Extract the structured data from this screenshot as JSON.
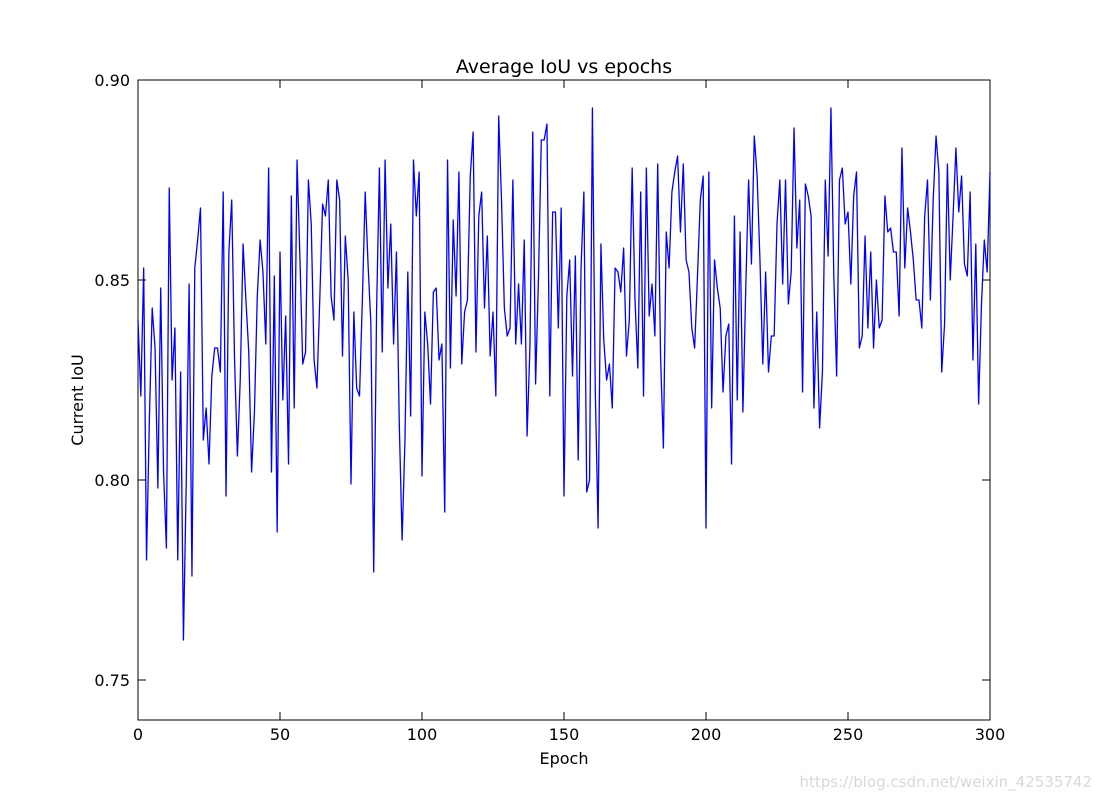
{
  "chart_data": {
    "type": "line",
    "title": "Average IoU vs epochs",
    "xlabel": "Epoch",
    "ylabel": "Current IoU",
    "xlim": [
      0,
      300
    ],
    "ylim": [
      0.74,
      0.9
    ],
    "xticks": [
      0,
      50,
      100,
      150,
      200,
      250,
      300
    ],
    "xtick_labels": [
      "0",
      "50",
      "100",
      "150",
      "200",
      "250",
      "300"
    ],
    "yticks": [
      0.75,
      0.8,
      0.85,
      0.9
    ],
    "ytick_labels": [
      "0.75",
      "0.80",
      "0.85",
      "0.90"
    ],
    "grid": false,
    "line_color": "#0000ff",
    "series": [
      {
        "values": [
          0.84,
          0.821,
          0.853,
          0.78,
          0.815,
          0.843,
          0.833,
          0.798,
          0.848,
          0.802,
          0.783,
          0.873,
          0.825,
          0.838,
          0.78,
          0.827,
          0.76,
          0.8,
          0.849,
          0.776,
          0.853,
          0.86,
          0.868,
          0.81,
          0.818,
          0.804,
          0.826,
          0.833,
          0.833,
          0.827,
          0.872,
          0.796,
          0.857,
          0.87,
          0.83,
          0.806,
          0.825,
          0.859,
          0.845,
          0.832,
          0.802,
          0.817,
          0.846,
          0.86,
          0.852,
          0.834,
          0.878,
          0.802,
          0.851,
          0.787,
          0.857,
          0.82,
          0.841,
          0.804,
          0.871,
          0.818,
          0.88,
          0.856,
          0.829,
          0.832,
          0.875,
          0.864,
          0.83,
          0.823,
          0.845,
          0.869,
          0.866,
          0.875,
          0.846,
          0.84,
          0.875,
          0.87,
          0.831,
          0.861,
          0.85,
          0.799,
          0.842,
          0.823,
          0.821,
          0.845,
          0.872,
          0.854,
          0.839,
          0.777,
          0.842,
          0.878,
          0.832,
          0.88,
          0.848,
          0.864,
          0.834,
          0.857,
          0.814,
          0.785,
          0.81,
          0.852,
          0.816,
          0.88,
          0.866,
          0.877,
          0.801,
          0.842,
          0.834,
          0.819,
          0.847,
          0.848,
          0.83,
          0.834,
          0.792,
          0.88,
          0.828,
          0.865,
          0.846,
          0.877,
          0.829,
          0.842,
          0.845,
          0.876,
          0.887,
          0.832,
          0.866,
          0.872,
          0.843,
          0.861,
          0.831,
          0.842,
          0.821,
          0.891,
          0.87,
          0.843,
          0.836,
          0.838,
          0.875,
          0.834,
          0.849,
          0.834,
          0.86,
          0.811,
          0.833,
          0.887,
          0.824,
          0.85,
          0.885,
          0.885,
          0.889,
          0.821,
          0.867,
          0.867,
          0.838,
          0.868,
          0.796,
          0.846,
          0.855,
          0.826,
          0.856,
          0.805,
          0.853,
          0.872,
          0.797,
          0.8,
          0.893,
          0.823,
          0.788,
          0.859,
          0.835,
          0.825,
          0.829,
          0.818,
          0.853,
          0.852,
          0.847,
          0.858,
          0.831,
          0.84,
          0.878,
          0.845,
          0.828,
          0.872,
          0.821,
          0.878,
          0.841,
          0.849,
          0.836,
          0.879,
          0.831,
          0.808,
          0.862,
          0.853,
          0.872,
          0.877,
          0.881,
          0.862,
          0.879,
          0.855,
          0.852,
          0.838,
          0.833,
          0.851,
          0.87,
          0.876,
          0.788,
          0.877,
          0.818,
          0.855,
          0.848,
          0.843,
          0.822,
          0.836,
          0.839,
          0.804,
          0.866,
          0.82,
          0.862,
          0.817,
          0.848,
          0.875,
          0.854,
          0.886,
          0.876,
          0.855,
          0.829,
          0.852,
          0.827,
          0.836,
          0.836,
          0.864,
          0.875,
          0.849,
          0.875,
          0.844,
          0.852,
          0.888,
          0.858,
          0.87,
          0.822,
          0.874,
          0.871,
          0.866,
          0.818,
          0.842,
          0.813,
          0.827,
          0.875,
          0.856,
          0.893,
          0.851,
          0.826,
          0.875,
          0.878,
          0.864,
          0.867,
          0.849,
          0.871,
          0.877,
          0.833,
          0.836,
          0.861,
          0.838,
          0.857,
          0.833,
          0.85,
          0.838,
          0.84,
          0.871,
          0.862,
          0.863,
          0.857,
          0.857,
          0.841,
          0.883,
          0.853,
          0.868,
          0.862,
          0.855,
          0.845,
          0.845,
          0.838,
          0.866,
          0.875,
          0.845,
          0.87,
          0.886,
          0.877,
          0.827,
          0.839,
          0.879,
          0.85,
          0.866,
          0.883,
          0.867,
          0.876,
          0.854,
          0.851,
          0.872,
          0.83,
          0.859,
          0.819,
          0.844,
          0.86,
          0.852,
          0.877
        ]
      }
    ]
  },
  "watermark": "https://blog.csdn.net/weixin_42535742"
}
